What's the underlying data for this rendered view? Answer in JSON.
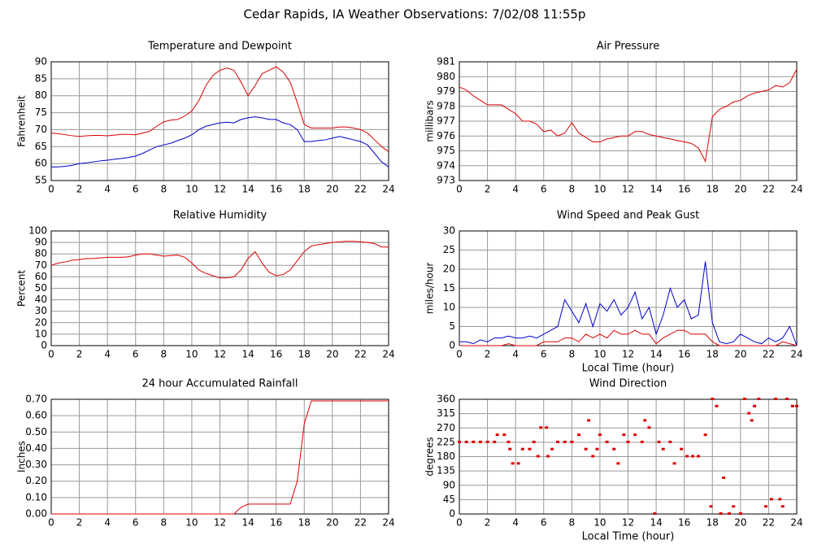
{
  "title": "Cedar Rapids, IA Weather Observations: 7/02/08 11:55p",
  "chart_data": [
    {
      "type": "line",
      "title": "Temperature and Dewpoint",
      "ylabel": "Fahrenheit",
      "x": [
        0,
        0.5,
        1,
        1.5,
        2,
        2.5,
        3,
        3.5,
        4,
        4.5,
        5,
        5.5,
        6,
        6.5,
        7,
        7.5,
        8,
        8.5,
        9,
        9.5,
        10,
        10.5,
        11,
        11.5,
        12,
        12.5,
        13,
        13.5,
        14,
        14.5,
        15,
        15.5,
        16,
        16.5,
        17,
        17.5,
        18,
        18.5,
        19,
        19.5,
        20,
        20.5,
        21,
        21.5,
        22,
        22.5,
        23,
        23.5,
        24
      ],
      "series": [
        {
          "color": "#dd0000",
          "values": [
            69,
            68.8,
            68.5,
            68.2,
            68,
            68.2,
            68.3,
            68.3,
            68.2,
            68.4,
            68.6,
            68.6,
            68.5,
            69,
            69.5,
            71,
            72.3,
            72.8,
            73,
            74,
            75.5,
            78.5,
            83,
            86,
            87.5,
            88.2,
            87.5,
            84,
            80,
            83,
            86.5,
            87.5,
            88.5,
            87,
            84,
            78,
            71.5,
            70.5,
            70.5,
            70.5,
            70.5,
            70.8,
            70.8,
            70.5,
            70,
            69,
            67,
            65,
            63.5
          ]
        },
        {
          "color": "#0000cc",
          "values": [
            59,
            59,
            59.2,
            59.5,
            60,
            60.2,
            60.5,
            60.8,
            61,
            61.3,
            61.5,
            61.8,
            62.2,
            63,
            64,
            65,
            65.5,
            66,
            66.8,
            67.5,
            68.5,
            70,
            71,
            71.5,
            72,
            72.2,
            72,
            73,
            73.5,
            73.8,
            73.5,
            73,
            73,
            72,
            71.5,
            70,
            66.5,
            66.5,
            66.8,
            67,
            67.5,
            68,
            67.5,
            67,
            66.5,
            65.5,
            63,
            60.5,
            59
          ]
        }
      ],
      "xlim": [
        0,
        24
      ],
      "xticks": [
        0,
        2,
        4,
        6,
        8,
        10,
        12,
        14,
        16,
        18,
        20,
        22,
        24
      ],
      "ylim": [
        55,
        90
      ],
      "yticks": [
        55,
        60,
        65,
        70,
        75,
        80,
        85,
        90
      ],
      "grid": true
    },
    {
      "type": "line",
      "title": "Air Pressure",
      "ylabel": "millibars",
      "x": [
        0,
        0.5,
        1,
        1.5,
        2,
        2.5,
        3,
        3.5,
        4,
        4.5,
        5,
        5.5,
        6,
        6.5,
        7,
        7.5,
        8,
        8.5,
        9,
        9.5,
        10,
        10.5,
        11,
        11.5,
        12,
        12.5,
        13,
        13.5,
        14,
        14.5,
        15,
        15.5,
        16,
        16.5,
        17,
        17.5,
        18,
        18.5,
        19,
        19.5,
        20,
        20.5,
        21,
        21.5,
        22,
        22.5,
        23,
        23.5,
        24
      ],
      "series": [
        {
          "color": "#dd0000",
          "values": [
            979.3,
            979.1,
            978.7,
            978.4,
            978.1,
            978.1,
            978.1,
            977.8,
            977.5,
            977.0,
            977.0,
            976.8,
            976.3,
            976.4,
            976.0,
            976.2,
            976.9,
            976.2,
            975.9,
            975.6,
            975.6,
            975.8,
            975.9,
            976.0,
            976.0,
            976.3,
            976.3,
            976.1,
            976.0,
            975.9,
            975.8,
            975.7,
            975.6,
            975.5,
            975.2,
            974.3,
            977.3,
            977.8,
            978.0,
            978.3,
            978.4,
            978.7,
            978.9,
            979.0,
            979.1,
            979.4,
            979.3,
            979.6,
            980.5
          ]
        }
      ],
      "xlim": [
        0,
        24
      ],
      "xticks": [
        0,
        2,
        4,
        6,
        8,
        10,
        12,
        14,
        16,
        18,
        20,
        22,
        24
      ],
      "ylim": [
        973,
        981
      ],
      "yticks": [
        973,
        974,
        975,
        976,
        977,
        978,
        979,
        980,
        981
      ],
      "grid": true
    },
    {
      "type": "line",
      "title": "Relative Humidity",
      "ylabel": "Percent",
      "x": [
        0,
        0.5,
        1,
        1.5,
        2,
        2.5,
        3,
        3.5,
        4,
        4.5,
        5,
        5.5,
        6,
        6.5,
        7,
        7.5,
        8,
        8.5,
        9,
        9.5,
        10,
        10.5,
        11,
        11.5,
        12,
        12.5,
        13,
        13.5,
        14,
        14.5,
        15,
        15.5,
        16,
        16.5,
        17,
        17.5,
        18,
        18.5,
        19,
        19.5,
        20,
        20.5,
        21,
        21.5,
        22,
        22.5,
        23,
        23.5,
        24
      ],
      "series": [
        {
          "color": "#dd0000",
          "values": [
            70,
            72,
            73,
            74.5,
            75,
            76,
            76,
            76.5,
            77,
            77,
            77,
            77.5,
            79,
            80,
            80,
            79,
            78,
            78.5,
            79,
            77,
            72,
            66,
            63,
            61,
            59,
            59,
            60,
            66,
            76,
            82,
            72,
            64,
            61,
            62,
            66,
            74,
            82,
            87,
            88,
            89,
            90,
            90.5,
            91,
            91,
            90.5,
            90,
            89,
            86,
            86
          ]
        }
      ],
      "xlim": [
        0,
        24
      ],
      "xticks": [
        0,
        2,
        4,
        6,
        8,
        10,
        12,
        14,
        16,
        18,
        20,
        22,
        24
      ],
      "ylim": [
        0,
        100
      ],
      "yticks": [
        0,
        10,
        20,
        30,
        40,
        50,
        60,
        70,
        80,
        90,
        100
      ],
      "grid": true
    },
    {
      "type": "line",
      "title": "Wind Speed and Peak Gust",
      "ylabel": "miles/hour",
      "xlabel": "Local Time (hour)",
      "x": [
        0,
        0.5,
        1,
        1.5,
        2,
        2.5,
        3,
        3.5,
        4,
        4.5,
        5,
        5.5,
        6,
        6.5,
        7,
        7.5,
        8,
        8.5,
        9,
        9.5,
        10,
        10.5,
        11,
        11.5,
        12,
        12.5,
        13,
        13.5,
        14,
        14.5,
        15,
        15.5,
        16,
        16.5,
        17,
        17.5,
        18,
        18.5,
        19,
        19.5,
        20,
        20.5,
        21,
        21.5,
        22,
        22.5,
        23,
        23.5,
        24
      ],
      "series": [
        {
          "color": "#0000cc",
          "values": [
            1,
            1,
            0.5,
            1.5,
            1,
            2,
            2,
            2.5,
            2,
            2,
            2.5,
            2,
            3,
            4,
            5,
            12,
            9,
            6,
            11,
            5,
            11,
            9,
            12,
            8,
            10,
            14,
            7,
            10,
            3,
            8,
            15,
            10,
            12,
            7,
            8,
            22,
            6,
            1,
            0.5,
            1,
            3,
            2,
            1,
            0.5,
            2,
            1,
            2,
            5,
            0
          ]
        },
        {
          "color": "#dd0000",
          "values": [
            0,
            0,
            0,
            0,
            0,
            0,
            0,
            0.5,
            0,
            0,
            0,
            0,
            1,
            1,
            1,
            2,
            2,
            1,
            3,
            2,
            3,
            2,
            4,
            3,
            3,
            4,
            3,
            3,
            0.5,
            2,
            3,
            4,
            4,
            3,
            3,
            3,
            1,
            0,
            0,
            0,
            0,
            0,
            0,
            0,
            0,
            0,
            1,
            0.5,
            0
          ]
        }
      ],
      "xlim": [
        0,
        24
      ],
      "xticks": [
        0,
        2,
        4,
        6,
        8,
        10,
        12,
        14,
        16,
        18,
        20,
        22,
        24
      ],
      "ylim": [
        0,
        30
      ],
      "yticks": [
        0,
        5,
        10,
        15,
        20,
        25,
        30
      ],
      "grid": true
    },
    {
      "type": "line",
      "title": "24 hour Accumulated Rainfall",
      "ylabel": "Inches",
      "x": [
        0,
        0.5,
        1,
        1.5,
        2,
        2.5,
        3,
        3.5,
        4,
        4.5,
        5,
        5.5,
        6,
        6.5,
        7,
        7.5,
        8,
        8.5,
        9,
        9.5,
        10,
        10.5,
        11,
        11.5,
        12,
        12.5,
        13,
        13.5,
        14,
        14.5,
        15,
        15.5,
        16,
        16.5,
        17,
        17.5,
        18,
        18.5,
        19,
        19.5,
        20,
        20.5,
        21,
        21.5,
        22,
        22.5,
        23,
        23.5,
        24
      ],
      "series": [
        {
          "color": "#dd0000",
          "values": [
            0,
            0,
            0,
            0,
            0,
            0,
            0,
            0,
            0,
            0,
            0,
            0,
            0,
            0,
            0,
            0,
            0,
            0,
            0,
            0,
            0,
            0,
            0,
            0,
            0,
            0,
            0,
            0.04,
            0.06,
            0.06,
            0.06,
            0.06,
            0.06,
            0.06,
            0.06,
            0.2,
            0.55,
            0.69,
            0.69,
            0.69,
            0.69,
            0.69,
            0.69,
            0.69,
            0.69,
            0.69,
            0.69,
            0.69,
            0.69
          ]
        }
      ],
      "xlim": [
        0,
        24
      ],
      "xticks": [
        0,
        2,
        4,
        6,
        8,
        10,
        12,
        14,
        16,
        18,
        20,
        22,
        24
      ],
      "ylim": [
        0,
        0.7
      ],
      "yticks": [
        {
          "value": 0,
          "label": "0.00"
        },
        {
          "value": 0.1,
          "label": "0.10"
        },
        {
          "value": 0.2,
          "label": "0.20"
        },
        {
          "value": 0.3,
          "label": "0.30"
        },
        {
          "value": 0.4,
          "label": "0.40"
        },
        {
          "value": 0.5,
          "label": "0.50"
        },
        {
          "value": 0.6,
          "label": "0.60"
        },
        {
          "value": 0.7,
          "label": "0.70"
        }
      ],
      "grid": true
    },
    {
      "type": "scatter",
      "title": "Wind Direction",
      "ylabel": "degrees",
      "xlabel": "Local Time (hour)",
      "x": [
        0,
        0.5,
        1,
        1.5,
        2,
        2.5,
        2.7,
        3.2,
        3.5,
        3.6,
        3.8,
        4.2,
        4.5,
        5,
        5.3,
        5.6,
        5.8,
        6.2,
        6.3,
        6.6,
        7,
        7.5,
        8,
        8.5,
        9,
        9.2,
        9.5,
        9.8,
        10,
        10.5,
        11,
        11.3,
        11.7,
        12,
        12.5,
        13,
        13.2,
        13.5,
        13.9,
        14.2,
        14.5,
        15,
        15.3,
        15.8,
        16.2,
        16.6,
        17,
        17.5,
        17.9,
        18,
        18.3,
        18.6,
        18.8,
        19.2,
        19.5,
        20,
        20.3,
        20.6,
        20.8,
        21,
        21.3,
        21.8,
        22.2,
        22.5,
        22.8,
        23,
        23.3,
        23.7,
        24
      ],
      "series": [
        {
          "color": "#dd0000",
          "values": [
            225,
            225,
            225,
            225,
            225,
            225,
            247.5,
            247.5,
            225,
            202.5,
            157.5,
            157.5,
            202.5,
            202.5,
            225,
            180,
            270,
            270,
            180,
            202.5,
            225,
            225,
            225,
            247.5,
            202.5,
            292.5,
            180,
            202.5,
            247.5,
            225,
            202.5,
            157.5,
            247.5,
            225,
            247.5,
            225,
            292.5,
            270,
            0,
            225,
            202.5,
            225,
            157.5,
            202.5,
            180,
            180,
            180,
            247.5,
            22.5,
            360,
            337.5,
            0,
            112.5,
            0,
            22.5,
            0,
            360,
            315,
            292.5,
            337.5,
            360,
            22.5,
            45,
            360,
            45,
            22.5,
            360,
            337.5,
            337.5
          ]
        }
      ],
      "xlim": [
        0,
        24
      ],
      "xticks": [
        0,
        2,
        4,
        6,
        8,
        10,
        12,
        14,
        16,
        18,
        20,
        22,
        24
      ],
      "ylim": [
        0,
        360
      ],
      "yticks": [
        0,
        45,
        90,
        135,
        180,
        225,
        270,
        315,
        360
      ],
      "grid": true
    }
  ]
}
